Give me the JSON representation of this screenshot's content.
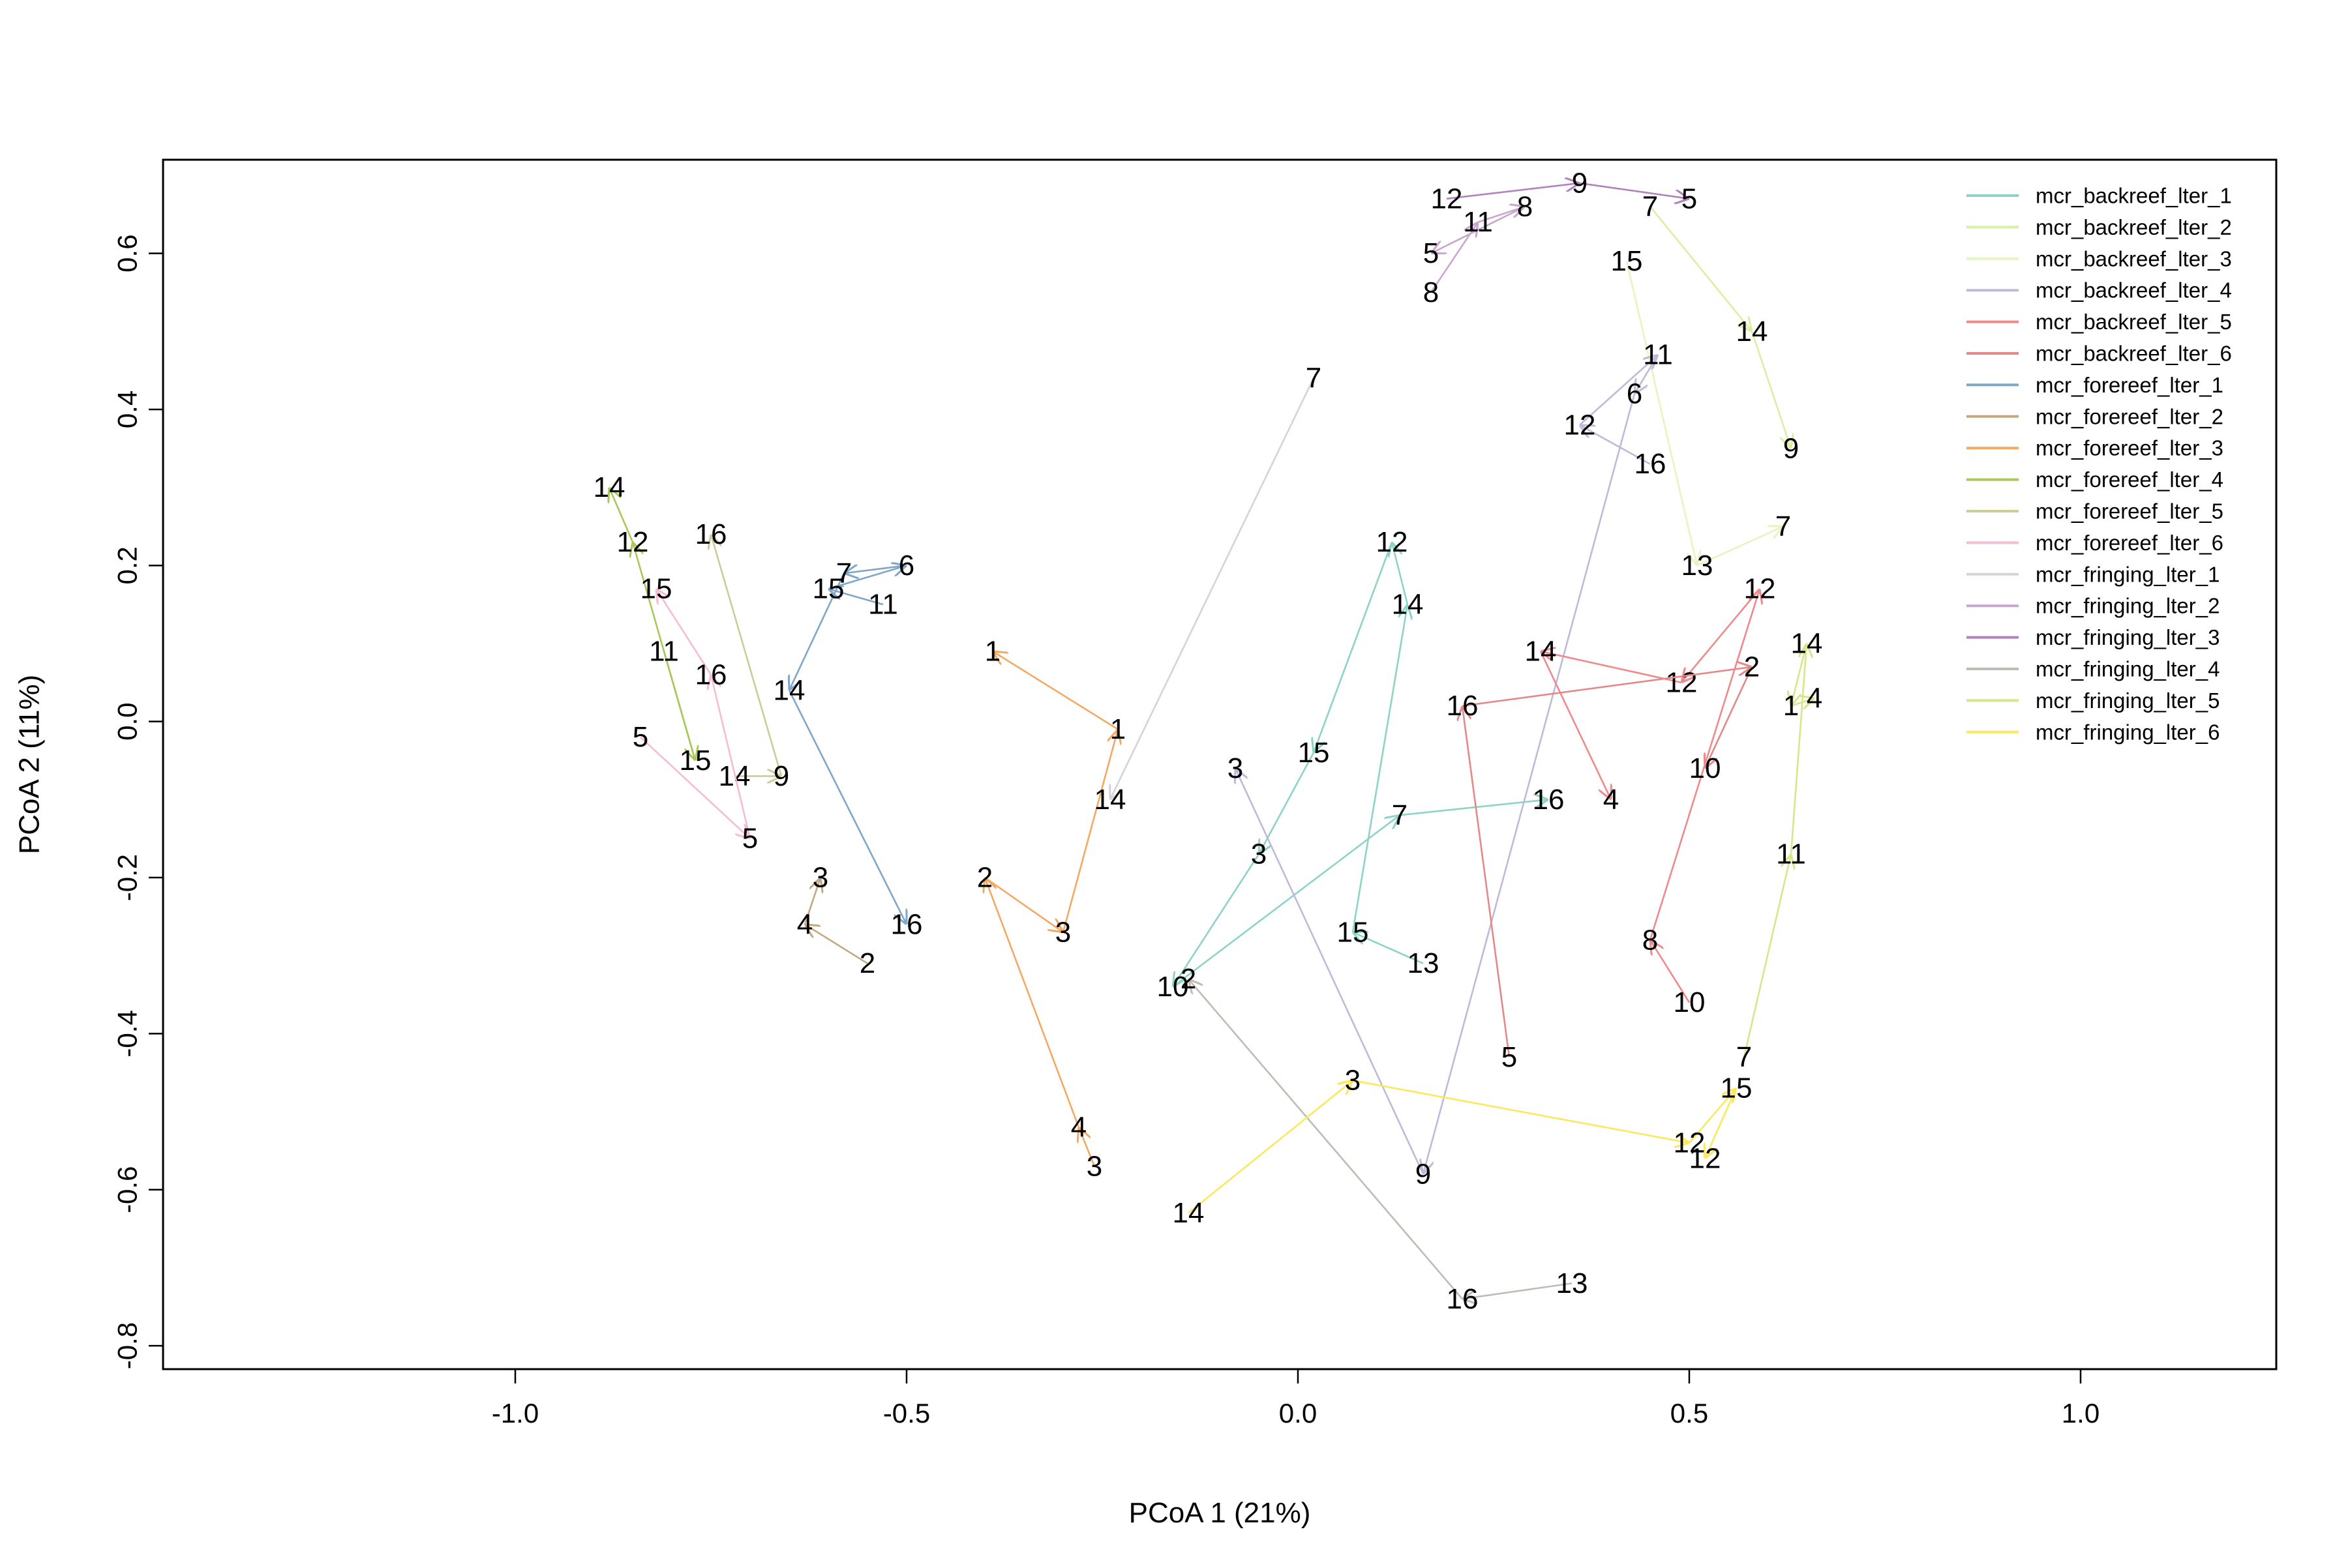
{
  "chart_data": {
    "type": "line",
    "title": "",
    "xlabel": "PCoA 1 (21%)",
    "ylabel": "PCoA 2 (11%)",
    "xlim": [
      -1.45,
      1.25
    ],
    "ylim": [
      -0.83,
      0.72
    ],
    "x_ticks": [
      -1.0,
      -0.5,
      0.0,
      0.5,
      1.0
    ],
    "x_tick_labels": [
      "-1.0",
      "-0.5",
      "0.0",
      "0.5",
      "1.0"
    ],
    "y_ticks": [
      -0.8,
      -0.6,
      -0.4,
      -0.2,
      0.0,
      0.2,
      0.4,
      0.6
    ],
    "y_tick_labels": [
      "-0.8",
      "-0.6",
      "-0.4",
      "-0.2",
      "0.0",
      "0.2",
      "0.4",
      "0.6"
    ],
    "grid": false,
    "legend_position": "top-right",
    "series": [
      {
        "name": "mcr_backreef_lter_1",
        "color": "#8DD3C7",
        "points": [
          {
            "x": 0.16,
            "y": -0.31,
            "label": "13"
          },
          {
            "x": 0.07,
            "y": -0.27,
            "label": "15"
          },
          {
            "x": 0.14,
            "y": 0.15,
            "label": "14"
          },
          {
            "x": 0.12,
            "y": 0.23,
            "label": "12"
          },
          {
            "x": 0.02,
            "y": -0.04,
            "label": "15"
          },
          {
            "x": -0.05,
            "y": -0.17,
            "label": "3"
          },
          {
            "x": -0.16,
            "y": -0.34,
            "label": "10"
          },
          {
            "x": 0.13,
            "y": -0.12,
            "label": "7"
          },
          {
            "x": 0.32,
            "y": -0.1,
            "label": "16"
          }
        ]
      },
      {
        "name": "mcr_backreef_lter_2",
        "color": "#D9F0A3",
        "points": [
          {
            "x": 0.45,
            "y": 0.66,
            "label": "7"
          },
          {
            "x": 0.58,
            "y": 0.5,
            "label": "14"
          },
          {
            "x": 0.63,
            "y": 0.35,
            "label": "9"
          }
        ]
      },
      {
        "name": "mcr_backreef_lter_3",
        "color": "#E5F5C0",
        "points": [
          {
            "x": 0.42,
            "y": 0.59,
            "label": "15"
          },
          {
            "x": 0.51,
            "y": 0.2,
            "label": "13"
          },
          {
            "x": 0.62,
            "y": 0.25,
            "label": "7"
          }
        ]
      },
      {
        "name": "mcr_backreef_lter_4",
        "color": "#BEBADA",
        "points": [
          {
            "x": 0.45,
            "y": 0.33,
            "label": "16"
          },
          {
            "x": 0.36,
            "y": 0.38,
            "label": "12"
          },
          {
            "x": 0.46,
            "y": 0.47,
            "label": "11"
          },
          {
            "x": 0.43,
            "y": 0.42,
            "label": "6"
          },
          {
            "x": 0.16,
            "y": -0.58,
            "label": "9"
          },
          {
            "x": -0.08,
            "y": -0.06,
            "label": "3"
          }
        ]
      },
      {
        "name": "mcr_backreef_lter_5",
        "color": "#F08A8A",
        "points": [
          {
            "x": 0.5,
            "y": -0.36,
            "label": "10"
          },
          {
            "x": 0.45,
            "y": -0.28,
            "label": "8"
          },
          {
            "x": 0.59,
            "y": 0.17,
            "label": "12"
          },
          {
            "x": 0.49,
            "y": 0.05,
            "label": "12"
          },
          {
            "x": 0.31,
            "y": 0.09,
            "label": "14"
          },
          {
            "x": 0.4,
            "y": -0.1,
            "label": "4"
          }
        ]
      },
      {
        "name": "mcr_backreef_lter_6",
        "color": "#E48888",
        "points": [
          {
            "x": 0.27,
            "y": -0.43,
            "label": "5"
          },
          {
            "x": 0.21,
            "y": 0.02,
            "label": "16"
          },
          {
            "x": 0.58,
            "y": 0.07,
            "label": "2"
          },
          {
            "x": 0.52,
            "y": -0.06,
            "label": "10"
          }
        ]
      },
      {
        "name": "mcr_forereef_lter_1",
        "color": "#80A6C8",
        "points": [
          {
            "x": -0.53,
            "y": 0.15,
            "label": "11"
          },
          {
            "x": -0.6,
            "y": 0.17,
            "label": "15"
          },
          {
            "x": -0.5,
            "y": 0.2,
            "label": "6"
          },
          {
            "x": -0.58,
            "y": 0.19,
            "label": "7"
          },
          {
            "x": -0.65,
            "y": 0.04,
            "label": "14"
          },
          {
            "x": -0.5,
            "y": -0.26,
            "label": "16"
          }
        ]
      },
      {
        "name": "mcr_forereef_lter_2",
        "color": "#C4A882",
        "points": [
          {
            "x": -0.55,
            "y": -0.31,
            "label": "2"
          },
          {
            "x": -0.63,
            "y": -0.26,
            "label": "4"
          },
          {
            "x": -0.61,
            "y": -0.2,
            "label": "3"
          }
        ]
      },
      {
        "name": "mcr_forereef_lter_3",
        "color": "#F4A962",
        "points": [
          {
            "x": -0.26,
            "y": -0.57,
            "label": "3"
          },
          {
            "x": -0.28,
            "y": -0.52,
            "label": "4"
          },
          {
            "x": -0.4,
            "y": -0.2,
            "label": "2"
          },
          {
            "x": -0.3,
            "y": -0.27,
            "label": "3"
          },
          {
            "x": -0.23,
            "y": -0.01,
            "label": "1"
          },
          {
            "x": -0.39,
            "y": 0.09,
            "label": "1"
          }
        ]
      },
      {
        "name": "mcr_forereef_lter_4",
        "color": "#A8C85A",
        "points": [
          {
            "x": -0.81,
            "y": 0.09,
            "label": "11"
          },
          {
            "x": -0.77,
            "y": -0.05,
            "label": "15"
          },
          {
            "x": -0.85,
            "y": 0.23,
            "label": "12"
          },
          {
            "x": -0.88,
            "y": 0.3,
            "label": "14"
          }
        ]
      },
      {
        "name": "mcr_forereef_lter_5",
        "color": "#CCCC99",
        "points": [
          {
            "x": -0.72,
            "y": -0.07,
            "label": "14"
          },
          {
            "x": -0.66,
            "y": -0.07,
            "label": "9"
          },
          {
            "x": -0.75,
            "y": 0.24,
            "label": "16"
          }
        ]
      },
      {
        "name": "mcr_forereef_lter_6",
        "color": "#F6BCD4",
        "points": [
          {
            "x": -0.84,
            "y": -0.02,
            "label": "5"
          },
          {
            "x": -0.7,
            "y": -0.15,
            "label": "5"
          },
          {
            "x": -0.75,
            "y": 0.06,
            "label": "16"
          },
          {
            "x": -0.82,
            "y": 0.17,
            "label": "15"
          }
        ]
      },
      {
        "name": "mcr_fringing_lter_1",
        "color": "#D9D0DA",
        "points": [
          {
            "x": 0.02,
            "y": 0.44,
            "label": "7"
          },
          {
            "x": -0.24,
            "y": -0.1,
            "label": "14"
          }
        ]
      },
      {
        "name": "mcr_fringing_lter_2",
        "color": "#C9A6D0",
        "points": [
          {
            "x": 0.17,
            "y": 0.55,
            "label": "8"
          },
          {
            "x": 0.23,
            "y": 0.64,
            "label": "11"
          },
          {
            "x": 0.29,
            "y": 0.66,
            "label": "8"
          },
          {
            "x": 0.17,
            "y": 0.6,
            "label": "5"
          }
        ]
      },
      {
        "name": "mcr_fringing_lter_3",
        "color": "#B083BC",
        "points": [
          {
            "x": 0.19,
            "y": 0.67,
            "label": "12"
          },
          {
            "x": 0.36,
            "y": 0.69,
            "label": "9"
          },
          {
            "x": 0.5,
            "y": 0.67,
            "label": "5"
          }
        ]
      },
      {
        "name": "mcr_fringing_lter_4",
        "color": "#C0BBB4",
        "points": [
          {
            "x": 0.35,
            "y": -0.72,
            "label": "13"
          },
          {
            "x": 0.21,
            "y": -0.74,
            "label": "16"
          },
          {
            "x": -0.14,
            "y": -0.33,
            "label": "2"
          }
        ]
      },
      {
        "name": "mcr_fringing_lter_5",
        "color": "#D4E88A",
        "points": [
          {
            "x": 0.57,
            "y": -0.43,
            "label": "7"
          },
          {
            "x": 0.63,
            "y": -0.17,
            "label": "11"
          },
          {
            "x": 0.65,
            "y": 0.1,
            "label": "14"
          },
          {
            "x": 0.63,
            "y": 0.02,
            "label": "1"
          },
          {
            "x": 0.66,
            "y": 0.03,
            "label": "4"
          }
        ]
      },
      {
        "name": "mcr_fringing_lter_6",
        "color": "#FCE85A",
        "points": [
          {
            "x": -0.14,
            "y": -0.63,
            "label": "14"
          },
          {
            "x": 0.07,
            "y": -0.46,
            "label": "3"
          },
          {
            "x": 0.5,
            "y": -0.54,
            "label": "12"
          },
          {
            "x": 0.56,
            "y": -0.47,
            "label": "15"
          },
          {
            "x": 0.52,
            "y": -0.56,
            "label": "12"
          }
        ]
      }
    ]
  }
}
